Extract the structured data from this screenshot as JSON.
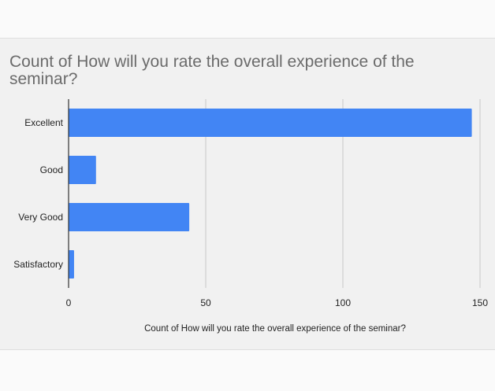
{
  "chart_data": {
    "type": "bar",
    "orientation": "horizontal",
    "title": "Count of How will you rate the overall experience of the seminar?",
    "categories": [
      "Excellent",
      "Good",
      "Very Good",
      "Satisfactory"
    ],
    "values": [
      147,
      10,
      44,
      2
    ],
    "xlabel": "Count of How will you rate the overall experience of the seminar?",
    "ylabel": "",
    "xlim": [
      0,
      150
    ],
    "x_ticks": [
      0,
      50,
      100,
      150
    ],
    "grid": true,
    "legend": "none",
    "bar_color": "#4285f4",
    "grid_color": "#c8c8c8",
    "axis_color": "#333333"
  }
}
